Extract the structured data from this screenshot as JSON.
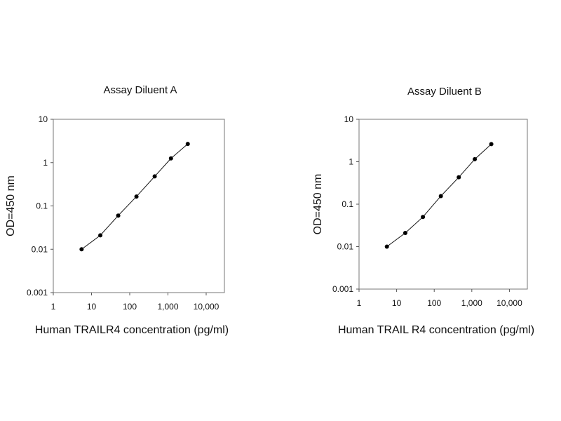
{
  "chart_data": [
    {
      "type": "scatter",
      "title": "Assay Diluent A",
      "xlabel": "Human TRAILR4 concentration (pg/ml)",
      "ylabel": "OD=450 nm",
      "x_scale": "log",
      "y_scale": "log",
      "xlim": [
        1,
        30000
      ],
      "ylim": [
        0.001,
        10
      ],
      "x_tick_labels": [
        "1",
        "10",
        "100",
        "1,000",
        "10,000"
      ],
      "y_tick_labels": [
        "0.001",
        "0.01",
        "0.1",
        "1",
        "10"
      ],
      "line": true,
      "series": [
        {
          "x": [
            5.5,
            17,
            50,
            150,
            450,
            1200,
            3300
          ],
          "y": [
            0.01,
            0.021,
            0.06,
            0.165,
            0.48,
            1.25,
            2.7
          ]
        }
      ]
    },
    {
      "type": "scatter",
      "title": "Assay Diluent B",
      "xlabel": "Human TRAIL R4 concentration (pg/ml)",
      "ylabel": "OD=450 nm",
      "x_scale": "log",
      "y_scale": "log",
      "xlim": [
        1,
        30000
      ],
      "ylim": [
        0.001,
        10
      ],
      "x_tick_labels": [
        "1",
        "10",
        "100",
        "1,000",
        "10,000"
      ],
      "y_tick_labels": [
        "0.001",
        "0.01",
        "0.1",
        "1",
        "10"
      ],
      "line": true,
      "series": [
        {
          "x": [
            5.5,
            17,
            50,
            150,
            450,
            1200,
            3300
          ],
          "y": [
            0.01,
            0.021,
            0.05,
            0.155,
            0.43,
            1.15,
            2.6
          ]
        }
      ]
    }
  ]
}
